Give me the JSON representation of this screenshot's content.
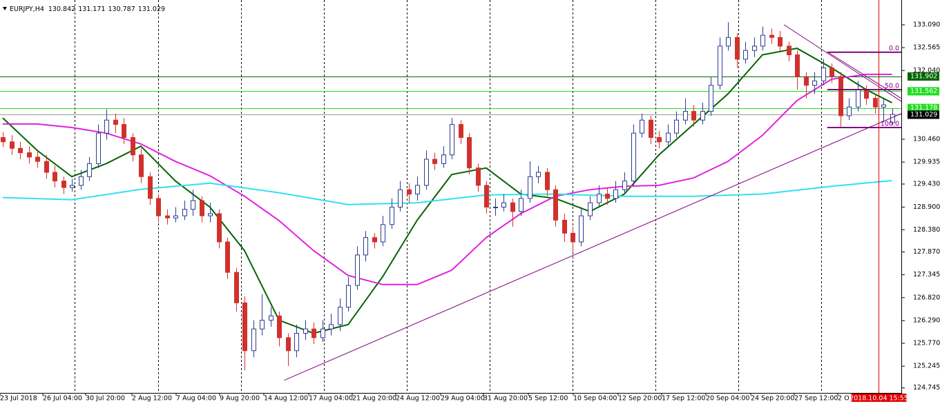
{
  "chart_data": {
    "type": "candlestick",
    "title": "EURJPY,H4",
    "bull_color": "#2b3a8f",
    "bear_color": "#d0312d",
    "ylim": [
      124.63,
      133.66
    ],
    "xlim": [
      -0.32,
      104.08
    ],
    "yticks": [
      {
        "value": 133.09,
        "label": "133.090"
      },
      132.565,
      {
        "value": 132.04,
        "label": "132.040"
      },
      {
        "value": 130.46,
        "label": "130.460"
      },
      129.935,
      {
        "value": 129.43,
        "label": "129.430"
      },
      {
        "value": 128.9,
        "label": "128.900"
      },
      {
        "value": 128.38,
        "label": "128.380"
      },
      {
        "value": 127.87,
        "label": "127.870"
      },
      127.345,
      {
        "value": 126.82,
        "label": "126.820"
      },
      {
        "value": 126.29,
        "label": "126.290"
      },
      {
        "value": 125.77,
        "label": "125.770"
      },
      125.245,
      124.745
    ],
    "xticks": [
      {
        "value": -0.32,
        "label": "23 Jul 2018"
      },
      {
        "value": 4.64,
        "label": "26 Jul 04:00"
      },
      {
        "value": 9.6,
        "label": "30 Jul 20:00"
      },
      {
        "value": 14.96,
        "label": "2 Aug 12:00"
      },
      {
        "value": 20.08,
        "label": "7 Aug 04:00"
      },
      {
        "value": 25.12,
        "label": "9 Aug 20:00"
      },
      {
        "value": 30.24,
        "label": "14 Aug 12:00"
      },
      {
        "value": 35.44,
        "label": "17 Aug 04:00"
      },
      {
        "value": 40.48,
        "label": "21 Aug 20:00"
      },
      {
        "value": 45.52,
        "label": "24 Aug 12:00"
      },
      {
        "value": 50.72,
        "label": "29 Aug 04:00"
      },
      {
        "value": 55.68,
        "label": "31 Aug 20:00"
      },
      {
        "value": 60.88,
        "label": "5 Sep 12:00"
      },
      {
        "value": 66.08,
        "label": "10 Sep 04:00"
      },
      {
        "value": 71.28,
        "label": "12 Sep 20:00"
      },
      {
        "value": 76.32,
        "label": "17 Sep 12:00"
      },
      {
        "value": 81.44,
        "label": "20 Sep 04:00"
      },
      {
        "value": 86.64,
        "label": "24 Sep 20:00"
      },
      {
        "value": 91.68,
        "label": "27 Sep 12:00"
      },
      {
        "value": 96.72,
        "label": "2 O"
      }
    ],
    "xgrid": [
      8.32,
      18.0,
      27.6,
      37.2,
      46.8,
      56.4,
      66.0,
      75.6,
      85.2,
      94.8
    ],
    "candles": [
      [
        130.5,
        130.62,
        130.28,
        130.4
      ],
      [
        130.4,
        130.55,
        130.1,
        130.25
      ],
      [
        130.25,
        130.4,
        130.0,
        130.15
      ],
      [
        130.15,
        130.3,
        129.9,
        130.05
      ],
      [
        130.05,
        130.2,
        129.8,
        129.95
      ],
      [
        129.95,
        130.1,
        129.55,
        129.7
      ],
      [
        129.7,
        129.85,
        129.35,
        129.5
      ],
      [
        129.5,
        129.6,
        129.2,
        129.35
      ],
      [
        129.35,
        129.55,
        129.25,
        129.4
      ],
      [
        129.4,
        129.75,
        129.3,
        129.6
      ],
      [
        129.6,
        130.05,
        129.5,
        129.9
      ],
      [
        129.9,
        130.8,
        129.8,
        130.6
      ],
      [
        130.6,
        131.15,
        130.45,
        130.9
      ],
      [
        130.9,
        131.05,
        130.6,
        130.8
      ],
      [
        130.8,
        130.95,
        130.35,
        130.5
      ],
      [
        130.5,
        130.6,
        129.95,
        130.1
      ],
      [
        130.1,
        130.25,
        129.45,
        129.6
      ],
      [
        129.6,
        129.7,
        128.95,
        129.1
      ],
      [
        129.1,
        129.2,
        128.55,
        128.7
      ],
      [
        128.7,
        128.85,
        128.5,
        128.65
      ],
      [
        128.65,
        128.9,
        128.55,
        128.7
      ],
      [
        128.7,
        129.05,
        128.6,
        128.85
      ],
      [
        128.85,
        129.3,
        128.7,
        129.05
      ],
      [
        129.05,
        129.15,
        128.55,
        128.7
      ],
      [
        128.7,
        129.0,
        128.55,
        128.75
      ],
      [
        128.75,
        128.85,
        127.95,
        128.1
      ],
      [
        128.1,
        128.2,
        127.25,
        127.4
      ],
      [
        127.4,
        127.5,
        126.5,
        126.7
      ],
      [
        126.7,
        126.85,
        125.15,
        125.6
      ],
      [
        125.6,
        126.3,
        125.45,
        126.1
      ],
      [
        126.1,
        126.9,
        125.95,
        126.3
      ],
      [
        126.3,
        126.6,
        126.15,
        126.4
      ],
      [
        126.4,
        126.5,
        125.7,
        125.9
      ],
      [
        125.9,
        126.0,
        125.25,
        125.6
      ],
      [
        125.6,
        126.2,
        125.45,
        126.0
      ],
      [
        126.0,
        126.3,
        125.85,
        126.1
      ],
      [
        126.1,
        126.25,
        125.75,
        125.9
      ],
      [
        125.9,
        126.3,
        125.8,
        126.1
      ],
      [
        126.1,
        126.45,
        125.95,
        126.2
      ],
      [
        126.2,
        126.8,
        126.05,
        126.6
      ],
      [
        126.6,
        127.3,
        126.5,
        127.1
      ],
      [
        127.1,
        128.0,
        127.0,
        127.8
      ],
      [
        127.8,
        128.35,
        127.65,
        128.2
      ],
      [
        128.2,
        128.3,
        127.95,
        128.1
      ],
      [
        128.1,
        128.7,
        128.0,
        128.5
      ],
      [
        128.5,
        129.1,
        128.4,
        128.9
      ],
      [
        128.9,
        129.5,
        128.8,
        129.3
      ],
      [
        129.3,
        129.45,
        129.0,
        129.2
      ],
      [
        129.2,
        129.6,
        129.05,
        129.4
      ],
      [
        129.4,
        130.2,
        129.3,
        130.0
      ],
      [
        130.0,
        130.15,
        129.75,
        129.9
      ],
      [
        129.9,
        130.3,
        129.8,
        130.1
      ],
      [
        130.1,
        130.95,
        130.0,
        130.8
      ],
      [
        130.8,
        130.9,
        130.35,
        130.5
      ],
      [
        130.5,
        130.6,
        129.65,
        129.8
      ],
      [
        129.8,
        129.9,
        129.25,
        129.4
      ],
      [
        129.4,
        129.5,
        128.75,
        128.9
      ],
      [
        128.9,
        129.1,
        128.7,
        128.9
      ],
      [
        128.9,
        129.2,
        128.8,
        129.0
      ],
      [
        129.0,
        129.1,
        128.45,
        128.8
      ],
      [
        128.8,
        129.3,
        128.7,
        129.1
      ],
      [
        129.1,
        129.95,
        129.0,
        129.6
      ],
      [
        129.6,
        129.85,
        129.45,
        129.7
      ],
      [
        129.7,
        129.8,
        129.15,
        129.3
      ],
      [
        129.3,
        129.4,
        128.45,
        128.6
      ],
      [
        128.6,
        128.75,
        128.1,
        128.3
      ],
      [
        128.3,
        128.45,
        127.85,
        128.1
      ],
      [
        128.1,
        128.9,
        128.0,
        128.7
      ],
      [
        128.7,
        129.15,
        128.6,
        129.0
      ],
      [
        129.0,
        129.4,
        128.9,
        129.2
      ],
      [
        129.2,
        129.35,
        128.95,
        129.1
      ],
      [
        129.1,
        129.5,
        129.0,
        129.3
      ],
      [
        129.3,
        129.7,
        129.2,
        129.5
      ],
      [
        129.5,
        130.8,
        129.4,
        130.6
      ],
      [
        130.6,
        131.05,
        130.5,
        130.9
      ],
      [
        130.9,
        131.0,
        130.35,
        130.5
      ],
      [
        130.5,
        130.65,
        130.25,
        130.4
      ],
      [
        130.4,
        130.8,
        130.3,
        130.6
      ],
      [
        130.6,
        131.1,
        130.5,
        130.9
      ],
      [
        130.9,
        131.4,
        130.8,
        131.1
      ],
      [
        131.1,
        131.25,
        130.75,
        130.9
      ],
      [
        130.9,
        131.3,
        130.8,
        131.1
      ],
      [
        131.1,
        131.9,
        131.0,
        131.7
      ],
      [
        131.7,
        132.8,
        131.6,
        132.6
      ],
      [
        132.6,
        133.15,
        132.5,
        132.8
      ],
      [
        132.8,
        132.9,
        132.1,
        132.3
      ],
      [
        132.3,
        132.7,
        132.2,
        132.5
      ],
      [
        132.5,
        132.8,
        132.35,
        132.6
      ],
      [
        132.6,
        133.05,
        132.5,
        132.85
      ],
      [
        132.85,
        133.0,
        132.65,
        132.8
      ],
      [
        132.8,
        132.95,
        132.45,
        132.6
      ],
      [
        132.6,
        132.7,
        132.25,
        132.4
      ],
      [
        132.4,
        132.5,
        131.6,
        131.9
      ],
      [
        131.9,
        132.0,
        131.4,
        131.7
      ],
      [
        131.7,
        132.0,
        131.5,
        131.8
      ],
      [
        131.8,
        132.3,
        131.7,
        132.1
      ],
      [
        132.1,
        132.2,
        131.75,
        131.9
      ],
      [
        131.9,
        132.0,
        130.75,
        131.0
      ],
      [
        131.0,
        131.4,
        130.9,
        131.2
      ],
      [
        131.2,
        131.8,
        131.1,
        131.6
      ],
      [
        131.6,
        131.7,
        131.25,
        131.4
      ],
      [
        131.4,
        131.5,
        131.05,
        131.2
      ],
      [
        131.2,
        131.4,
        130.85,
        131.25
      ],
      [
        130.842,
        131.171,
        130.787,
        131.029
      ]
    ],
    "series": [
      {
        "color": "#006400",
        "x": [
          0,
          4,
          8,
          12,
          16,
          20,
          24,
          28,
          32,
          36,
          40,
          44,
          48,
          52,
          56,
          60,
          64,
          68,
          72,
          76,
          80,
          84,
          88,
          92,
          96,
          100,
          103
        ],
        "values": [
          130.95,
          130.2,
          129.6,
          129.9,
          130.3,
          129.5,
          128.9,
          127.9,
          126.3,
          126.0,
          126.2,
          127.3,
          128.6,
          129.65,
          129.8,
          129.2,
          129.1,
          128.8,
          129.2,
          130.1,
          130.8,
          131.5,
          132.4,
          132.55,
          132.1,
          131.6,
          131.3
        ]
      },
      {
        "color": "#e020e0",
        "x": [
          0,
          4,
          8,
          12,
          16,
          20,
          24,
          28,
          32,
          36,
          40,
          44,
          48,
          52,
          56,
          60,
          64,
          68,
          72,
          76,
          80,
          84,
          88,
          92,
          96,
          100,
          103
        ],
        "values": [
          130.81,
          130.81,
          130.73,
          130.6,
          130.35,
          129.95,
          129.62,
          129.15,
          128.59,
          127.9,
          127.33,
          127.12,
          127.12,
          127.45,
          128.2,
          128.75,
          129.15,
          129.3,
          129.38,
          129.4,
          129.57,
          129.95,
          130.55,
          131.35,
          131.84,
          131.95,
          131.95
        ]
      },
      {
        "color": "#30e0f0",
        "x": [
          0,
          8,
          16,
          24,
          32,
          40,
          48,
          56,
          64,
          72,
          80,
          88,
          96,
          103
        ],
        "values": [
          129.12,
          129.07,
          129.31,
          129.45,
          129.23,
          128.96,
          129.0,
          129.18,
          129.2,
          129.15,
          129.15,
          129.2,
          129.38,
          129.51
        ]
      }
    ],
    "levels": [
      {
        "value": 131.902,
        "color": "#006400",
        "box": "#006400"
      },
      {
        "value": 131.562,
        "color": "#22dd22",
        "box": "#22dd22"
      },
      {
        "value": 131.178,
        "color": "#22dd22",
        "box": "#22dd22"
      }
    ],
    "current_color": "#999999",
    "trendlines": [
      {
        "x": [
          32.6,
          104.08
        ],
        "values": [
          124.92,
          131.05
        ]
      },
      {
        "x": [
          90.5,
          104.08
        ],
        "values": [
          133.09,
          131.33
        ]
      },
      {
        "x": [
          95.5,
          104.08
        ],
        "values": [
          132.47,
          131.4
        ]
      }
    ],
    "trend_color": "#800080",
    "fibo": {
      "x_start": 95.5,
      "color": "#800080",
      "levels": [
        {
          "value": 132.46,
          "label": "0.0"
        },
        {
          "value": 131.6,
          "label": "50.0"
        },
        {
          "value": 130.73,
          "label": "100.0"
        }
      ]
    },
    "cursor": {
      "x": 101.44,
      "label": "2018.10.04 15:55",
      "color": "#e00000"
    }
  }
}
